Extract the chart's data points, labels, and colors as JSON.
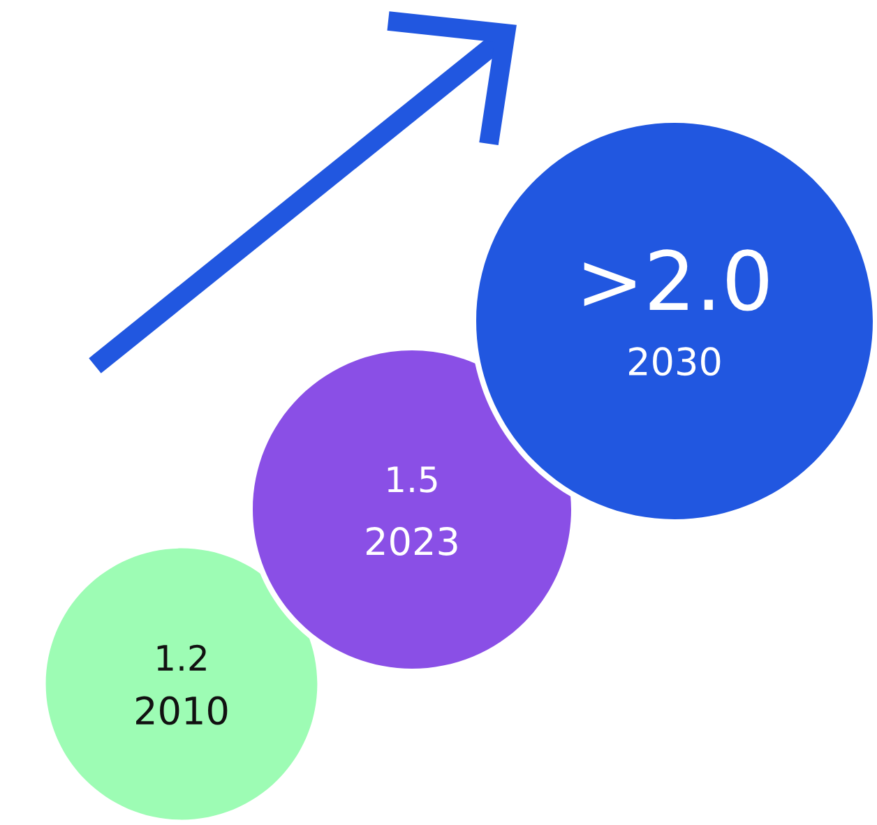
{
  "chart_data": {
    "type": "other",
    "categories": [
      "2010",
      "2023",
      "2030"
    ],
    "values": [
      1.2,
      1.5,
      2.0
    ],
    "value_labels": [
      "1.2",
      "1.5",
      ">2.0"
    ],
    "colors": [
      "#9dfcb4",
      "#8a4fe6",
      "#2157e0"
    ]
  }
}
